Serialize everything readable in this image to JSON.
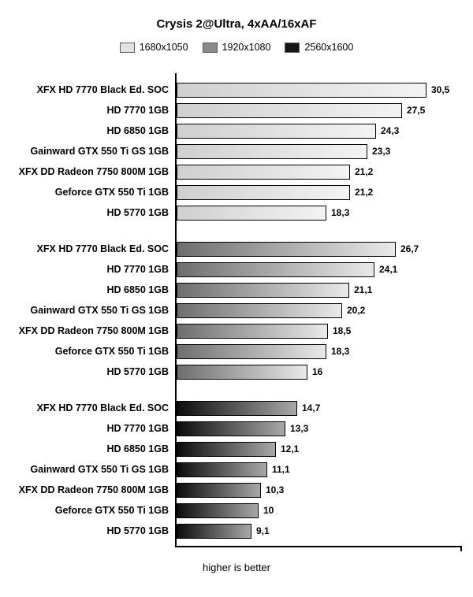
{
  "title": "Crysis 2@Ultra, 4xAA/16xAF",
  "footer": "higher is better",
  "legend": [
    {
      "label": "1680x1050",
      "color": "#e2e2e2"
    },
    {
      "label": "1920x1080",
      "color": "#8a8a8a"
    },
    {
      "label": "2560x1600",
      "color": "#161616"
    }
  ],
  "chart_data": {
    "type": "bar",
    "orientation": "horizontal",
    "title": "Crysis 2@Ultra, 4xAA/16xAF",
    "note": "higher is better",
    "xlim": [
      0,
      32
    ],
    "grid": false,
    "legend_position": "top",
    "categories": [
      "XFX HD 7770 Black Ed. SOC",
      "HD 7770 1GB",
      "HD 6850 1GB",
      "Gainward GTX 550 Ti GS 1GB",
      "XFX DD Radeon 7750 800M 1GB",
      "Geforce GTX 550 Ti 1GB",
      "HD 5770 1GB"
    ],
    "series": [
      {
        "name": "1680x1050",
        "values": [
          30.5,
          27.5,
          24.3,
          23.3,
          21.2,
          21.2,
          18.3
        ],
        "labels": [
          "30,5",
          "27,5",
          "24,3",
          "23,3",
          "21,2",
          "21,2",
          "18,3"
        ],
        "gradient": [
          "#cfcfcf",
          "#f3f3f3"
        ]
      },
      {
        "name": "1920x1080",
        "values": [
          26.7,
          24.1,
          21.1,
          20.2,
          18.5,
          18.3,
          16
        ],
        "labels": [
          "26,7",
          "24,1",
          "21,1",
          "20,2",
          "18,5",
          "18,3",
          "16"
        ],
        "gradient": [
          "#6e6e6e",
          "#e9e9e9"
        ]
      },
      {
        "name": "2560x1600",
        "values": [
          14.7,
          13.3,
          12.1,
          11.1,
          10.3,
          10,
          9.1
        ],
        "labels": [
          "14,7",
          "13,3",
          "12,1",
          "11,1",
          "10,3",
          "10",
          "9,1"
        ],
        "gradient": [
          "#0c0c0c",
          "#a8a8a8"
        ]
      }
    ]
  }
}
